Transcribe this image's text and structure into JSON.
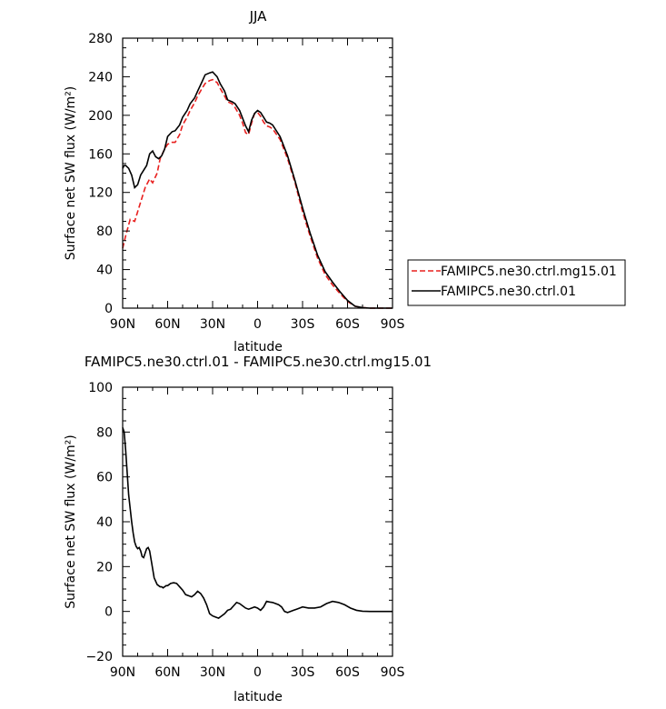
{
  "chart_data": [
    {
      "type": "line",
      "title": "JJA",
      "xlabel": "latitude",
      "ylabel": "Surface net SW flux (W/m²)",
      "xlim": [
        90,
        -90
      ],
      "ylim": [
        0,
        280
      ],
      "xticks": [
        90,
        60,
        30,
        0,
        -30,
        -60,
        -90
      ],
      "xtick_labels": [
        "90N",
        "60N",
        "30N",
        "0",
        "30S",
        "60S",
        "90S"
      ],
      "yticks": [
        0,
        40,
        80,
        120,
        160,
        200,
        240,
        280
      ],
      "ytick_labels": [
        "0",
        "40",
        "80",
        "120",
        "160",
        "200",
        "240",
        "280"
      ],
      "legend_position": "right",
      "series": [
        {
          "name": "FAMIPC5.ne30.ctrl.mg15.01",
          "color": "#e8201f",
          "style": "dashed",
          "x": [
            90,
            88,
            85,
            82,
            80,
            77,
            75,
            72,
            70,
            67,
            65,
            62,
            60,
            57,
            55,
            52,
            50,
            47,
            45,
            42,
            40,
            37,
            35,
            32,
            30,
            27,
            25,
            22,
            20,
            17,
            15,
            12,
            10,
            8,
            6,
            4,
            2,
            0,
            -2,
            -4,
            -6,
            -8,
            -10,
            -15,
            -20,
            -25,
            -30,
            -35,
            -40,
            -45,
            -50,
            -55,
            -60,
            -65,
            -70,
            -75,
            -80,
            -85,
            -90
          ],
          "values": [
            62,
            75,
            92,
            90,
            100,
            115,
            125,
            134,
            130,
            140,
            155,
            165,
            170,
            172,
            172,
            180,
            190,
            198,
            205,
            213,
            220,
            228,
            233,
            236,
            237,
            234,
            228,
            220,
            214,
            212,
            208,
            200,
            192,
            182,
            180,
            192,
            202,
            203,
            199,
            193,
            189,
            188,
            186,
            175,
            155,
            130,
            100,
            75,
            52,
            35,
            24,
            15,
            7,
            2,
            0.5,
            0,
            0,
            0,
            0
          ]
        },
        {
          "name": "FAMIPC5.ne30.ctrl.01",
          "color": "#000000",
          "style": "solid",
          "x": [
            90,
            89,
            88,
            86,
            84,
            82,
            80,
            78,
            76,
            74,
            72,
            70,
            68,
            66,
            64,
            62,
            60,
            57,
            55,
            52,
            50,
            47,
            45,
            42,
            40,
            37,
            35,
            32,
            30,
            27,
            25,
            22,
            20,
            17,
            15,
            12,
            10,
            8,
            6,
            4,
            2,
            0,
            -2,
            -4,
            -6,
            -8,
            -10,
            -15,
            -20,
            -25,
            -30,
            -35,
            -40,
            -45,
            -50,
            -55,
            -60,
            -65,
            -70,
            -75,
            -80,
            -85,
            -90
          ],
          "values": [
            145,
            148,
            148,
            145,
            138,
            125,
            128,
            138,
            143,
            148,
            160,
            163,
            157,
            155,
            158,
            165,
            178,
            183,
            184,
            190,
            198,
            205,
            212,
            218,
            225,
            235,
            242,
            244,
            245,
            240,
            233,
            225,
            216,
            214,
            212,
            205,
            197,
            189,
            183,
            195,
            202,
            205,
            203,
            198,
            193,
            192,
            190,
            178,
            158,
            132,
            104,
            78,
            55,
            38,
            27,
            17,
            8,
            2,
            0.5,
            0,
            0,
            0,
            0
          ]
        }
      ]
    },
    {
      "type": "line",
      "title": "FAMIPC5.ne30.ctrl.01 - FAMIPC5.ne30.ctrl.mg15.01",
      "xlabel": "latitude",
      "ylabel": "Surface net SW flux (W/m²)",
      "xlim": [
        90,
        -90
      ],
      "ylim": [
        -20,
        100
      ],
      "xticks": [
        90,
        60,
        30,
        0,
        -30,
        -60,
        -90
      ],
      "xtick_labels": [
        "90N",
        "60N",
        "30N",
        "0",
        "30S",
        "60S",
        "90S"
      ],
      "yticks": [
        -20,
        0,
        20,
        40,
        60,
        80,
        100
      ],
      "ytick_labels": [
        "−20",
        "0",
        "20",
        "40",
        "60",
        "80",
        "100"
      ],
      "series": [
        {
          "color": "#000000",
          "style": "solid",
          "x": [
            90,
            89,
            88,
            87,
            86,
            85,
            84,
            83,
            82,
            81,
            80,
            79,
            78,
            77,
            76,
            75,
            74,
            73,
            72,
            71,
            70,
            69,
            68,
            67,
            66,
            65,
            64,
            63,
            62,
            61,
            60,
            59,
            58,
            56,
            54,
            52,
            50,
            48,
            46,
            44,
            42,
            40,
            38,
            36,
            34,
            32,
            30,
            28,
            26,
            24,
            22,
            20,
            18,
            16,
            14,
            12,
            10,
            8,
            6,
            4,
            2,
            0,
            -2,
            -4,
            -6,
            -8,
            -10,
            -12,
            -14,
            -16,
            -18,
            -20,
            -22,
            -24,
            -26,
            -28,
            -30,
            -34,
            -38,
            -42,
            -46,
            -50,
            -54,
            -58,
            -62,
            -66,
            -70,
            -75,
            -80,
            -85,
            -90
          ],
          "values": [
            82,
            80,
            72,
            62,
            52,
            46,
            40,
            35,
            31,
            29,
            28,
            28.5,
            27,
            24.5,
            24,
            26,
            28,
            28.5,
            27,
            23,
            19,
            15,
            13.5,
            12,
            11.5,
            11,
            11,
            10.5,
            11,
            11.5,
            11.5,
            12,
            12.5,
            12.8,
            12.5,
            11,
            9.5,
            7.5,
            7,
            6.5,
            7.5,
            9,
            8,
            6,
            3,
            -1,
            -2,
            -2.5,
            -3,
            -2,
            -1,
            0.5,
            1,
            2.5,
            4,
            3.5,
            2.5,
            1.5,
            1,
            1.5,
            2,
            1.5,
            0.5,
            2,
            4.5,
            4.2,
            4,
            3.5,
            3,
            2,
            0,
            -0.5,
            0,
            0.5,
            1,
            1.5,
            2,
            1.5,
            1.5,
            2,
            3.5,
            4.5,
            4,
            3,
            1.5,
            0.5,
            0.1,
            0,
            0,
            0,
            0
          ]
        }
      ]
    }
  ],
  "legend": {
    "entries": [
      {
        "label": "FAMIPC5.ne30.ctrl.mg15.01",
        "color": "#e8201f",
        "style": "dashed"
      },
      {
        "label": "FAMIPC5.ne30.ctrl.01",
        "color": "#000000",
        "style": "solid"
      }
    ]
  }
}
